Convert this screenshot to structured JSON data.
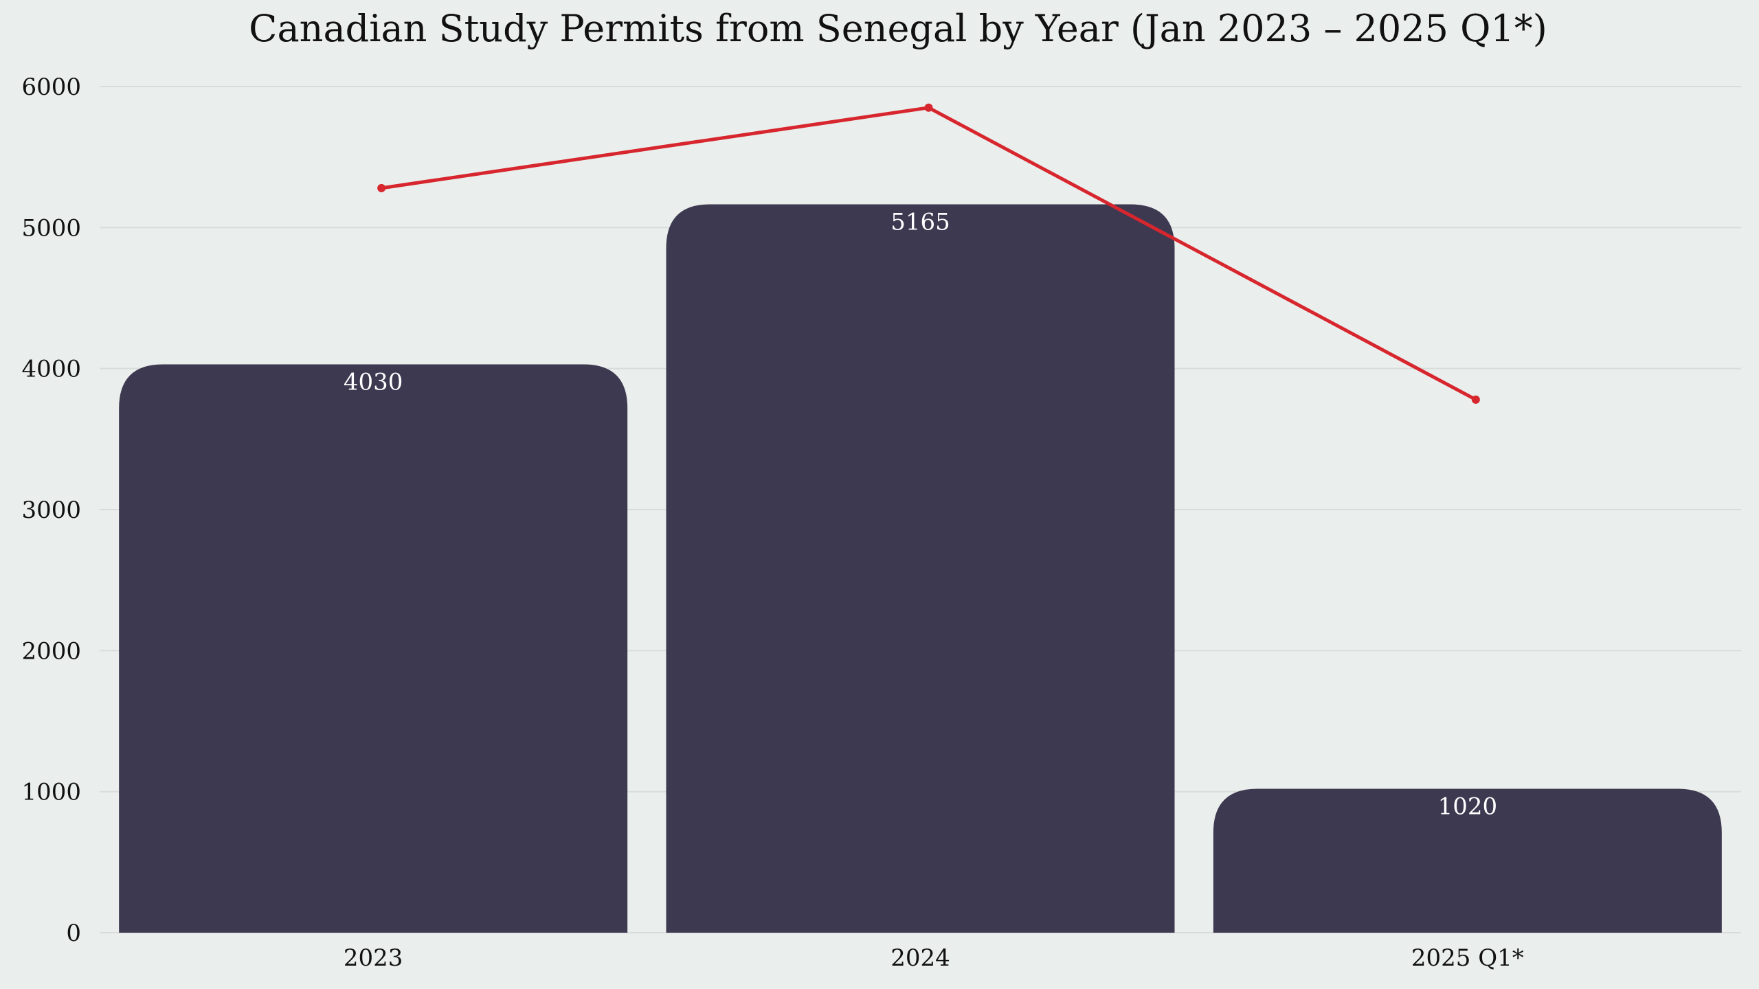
{
  "chart_data": {
    "type": "bar",
    "title": "Canadian Study Permits from Senegal by Year (Jan 2023 – 2025 Q1*)",
    "xlabel": "",
    "ylabel": "",
    "categories": [
      "2023",
      "2024",
      "2025 Q1*"
    ],
    "series": [
      {
        "type": "bar",
        "values": [
          4030,
          5165,
          1020
        ],
        "color": "#3D3950",
        "labels": [
          "4030",
          "5165",
          "1020"
        ]
      },
      {
        "type": "line",
        "values": [
          5280,
          5850,
          3780
        ],
        "color": "#D7262E"
      }
    ],
    "ylim": [
      0,
      6000
    ],
    "yticks": [
      0,
      1000,
      2000,
      3000,
      4000,
      5000,
      6000
    ],
    "ytick_labels": [
      "0",
      "1000",
      "2000",
      "3000",
      "4000",
      "5000",
      "6000"
    ],
    "grid": true,
    "legend": "none",
    "colors": {
      "background": "#EAEEEC",
      "grid": "#D8DCDB",
      "text": "#111111",
      "bar_label": "#FFFFFF"
    }
  }
}
